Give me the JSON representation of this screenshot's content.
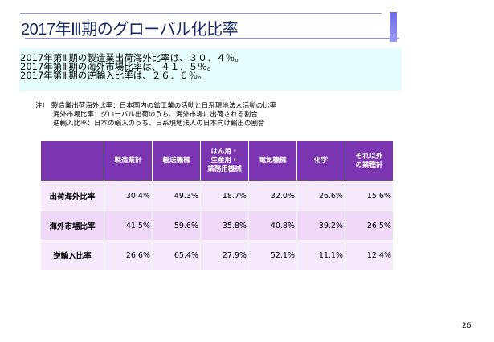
{
  "title": "2017年Ⅲ期のグローバル化比率",
  "summary": [
    "2017年第Ⅲ期の製造業出荷海外比率は、３０．４％。",
    "2017年第Ⅲ期の海外市場比率は、４１．５％。",
    "2017年第Ⅲ期の逆輸入比率は、２６．６％。"
  ],
  "note": {
    "prefix": "注）",
    "lines": [
      "製造業出荷海外比率：日本国内の鉱工業の活動と日系現地法人活動の比率",
      "海外市場比率：グローバル出荷のうち、海外市場に出荷される割合",
      "逆輸入比率：日本の輸入のうち、日系現地法人の日本向け輸出の割合"
    ]
  },
  "table": {
    "headers": [
      "製造業計",
      "輸送機械",
      [
        "はん用・",
        "生産用・",
        "業務用機械"
      ],
      "電気機械",
      "化学",
      [
        "それ以外",
        "の業種計"
      ]
    ],
    "rows": [
      {
        "label": "出荷海外比率",
        "values": [
          "30.4%",
          "49.3%",
          "18.7%",
          "32.0%",
          "26.6%",
          "15.6%"
        ]
      },
      {
        "label": "海外市場比率",
        "values": [
          "41.5%",
          "59.6%",
          "35.8%",
          "40.8%",
          "39.2%",
          "26.5%"
        ]
      },
      {
        "label": "逆輸入比率",
        "values": [
          "26.6%",
          "65.4%",
          "27.9%",
          "52.1%",
          "11.1%",
          "12.4%"
        ]
      }
    ]
  },
  "page_number": "26"
}
